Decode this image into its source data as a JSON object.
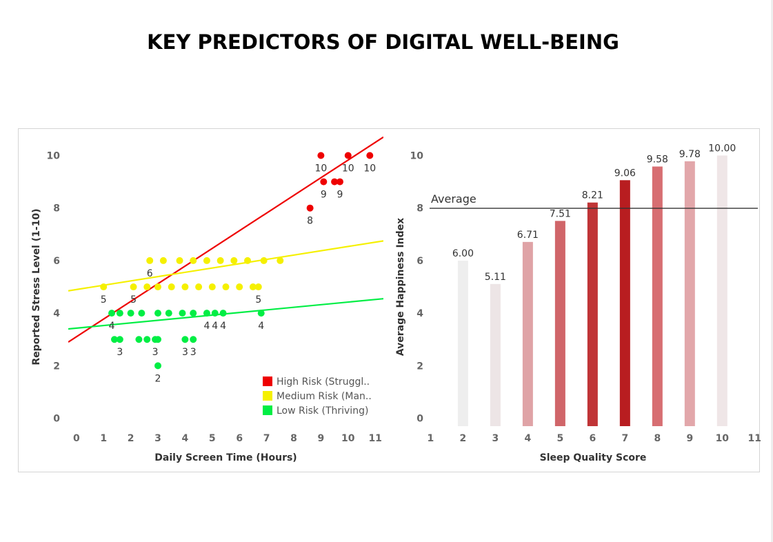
{
  "title": "KEY PREDICTORS OF DIGITAL WELL-BEING",
  "chart_data": [
    {
      "type": "scatter",
      "xlabel": "Daily Screen Time (Hours)",
      "ylabel": "Reported Stress Level (1-10)",
      "xlim": [
        -0.3,
        11.3
      ],
      "ylim": [
        -0.3,
        10.8
      ],
      "x_ticks": [
        "0",
        "1",
        "2",
        "3",
        "4",
        "5",
        "6",
        "7",
        "8",
        "9",
        "10",
        "11"
      ],
      "y_ticks": [
        "0",
        "2",
        "4",
        "6",
        "8",
        "10"
      ],
      "grid": false,
      "legend_position": "bottom-right",
      "series": [
        {
          "name": "High Risk (Struggl..",
          "color": "#ee0000",
          "points": [
            [
              9.0,
              10
            ],
            [
              10.0,
              10
            ],
            [
              10.8,
              10
            ],
            [
              9.1,
              9
            ],
            [
              9.5,
              9
            ],
            [
              9.7,
              9
            ],
            [
              8.6,
              8
            ]
          ],
          "trend": [
            [
              -0.3,
              2.9
            ],
            [
              11.3,
              10.7
            ]
          ]
        },
        {
          "name": "Medium Risk (Man..",
          "color": "#f5f000",
          "points": [
            [
              1.0,
              5
            ],
            [
              2.1,
              5
            ],
            [
              6.7,
              5
            ],
            [
              2.6,
              5
            ],
            [
              3.0,
              5
            ],
            [
              3.5,
              5
            ],
            [
              4.0,
              5
            ],
            [
              4.5,
              5
            ],
            [
              5.0,
              5
            ],
            [
              5.5,
              5
            ],
            [
              6.0,
              5
            ],
            [
              6.5,
              5
            ],
            [
              2.7,
              6
            ],
            [
              3.2,
              6
            ],
            [
              3.8,
              6
            ],
            [
              4.3,
              6
            ],
            [
              4.8,
              6
            ],
            [
              5.3,
              6
            ],
            [
              5.8,
              6
            ],
            [
              6.3,
              6
            ],
            [
              6.9,
              6
            ],
            [
              7.5,
              6
            ]
          ],
          "trend": [
            [
              -0.3,
              4.85
            ],
            [
              11.3,
              6.75
            ]
          ]
        },
        {
          "name": "Low Risk (Thriving)",
          "color": "#00ee44",
          "points": [
            [
              1.3,
              4
            ],
            [
              1.6,
              4
            ],
            [
              2.0,
              4
            ],
            [
              2.4,
              4
            ],
            [
              3.0,
              4
            ],
            [
              3.4,
              4
            ],
            [
              3.9,
              4
            ],
            [
              4.3,
              4
            ],
            [
              4.8,
              4
            ],
            [
              5.1,
              4
            ],
            [
              5.4,
              4
            ],
            [
              6.8,
              4
            ],
            [
              1.4,
              3
            ],
            [
              1.6,
              3
            ],
            [
              2.3,
              3
            ],
            [
              2.6,
              3
            ],
            [
              2.9,
              3
            ],
            [
              3.0,
              3
            ],
            [
              4.0,
              3
            ],
            [
              4.3,
              3
            ],
            [
              3.0,
              2
            ]
          ],
          "trend": [
            [
              -0.3,
              3.4
            ],
            [
              11.3,
              4.55
            ]
          ]
        }
      ],
      "point_labels": [
        {
          "x": 9.0,
          "y": 10,
          "text": "10"
        },
        {
          "x": 10.0,
          "y": 10,
          "text": "10"
        },
        {
          "x": 10.8,
          "y": 10,
          "text": "10"
        },
        {
          "x": 9.1,
          "y": 9,
          "text": "9"
        },
        {
          "x": 9.7,
          "y": 9,
          "text": "9"
        },
        {
          "x": 8.6,
          "y": 8,
          "text": "8"
        },
        {
          "x": 2.7,
          "y": 6,
          "text": "6"
        },
        {
          "x": 1.0,
          "y": 5,
          "text": "5"
        },
        {
          "x": 2.1,
          "y": 5,
          "text": "5"
        },
        {
          "x": 6.7,
          "y": 5,
          "text": "5"
        },
        {
          "x": 1.3,
          "y": 4,
          "text": "4"
        },
        {
          "x": 4.8,
          "y": 4,
          "text": "4"
        },
        {
          "x": 5.1,
          "y": 4,
          "text": "4"
        },
        {
          "x": 5.4,
          "y": 4,
          "text": "4"
        },
        {
          "x": 6.8,
          "y": 4,
          "text": "4"
        },
        {
          "x": 1.6,
          "y": 3,
          "text": "3"
        },
        {
          "x": 2.9,
          "y": 3,
          "text": "3"
        },
        {
          "x": 4.0,
          "y": 3,
          "text": "3"
        },
        {
          "x": 4.3,
          "y": 3,
          "text": "3"
        },
        {
          "x": 3.0,
          "y": 2,
          "text": "2"
        }
      ]
    },
    {
      "type": "bar",
      "xlabel": "Sleep Quality Score",
      "ylabel": "Average Happiness Index",
      "x_ticks": [
        "1",
        "2",
        "3",
        "4",
        "5",
        "6",
        "7",
        "8",
        "9",
        "10",
        "11"
      ],
      "y_ticks": [
        "0",
        "2",
        "4",
        "6",
        "8",
        "10"
      ],
      "xlim": [
        0.97,
        11.1
      ],
      "ylim": [
        -0.3,
        10.8
      ],
      "categories": [
        2,
        3,
        4,
        5,
        6,
        7,
        8,
        9,
        10
      ],
      "values": [
        6.0,
        5.11,
        6.71,
        7.51,
        8.21,
        9.06,
        9.58,
        9.78,
        10.0
      ],
      "labels": [
        "6.00",
        "5.11",
        "6.71",
        "7.51",
        "8.21",
        "9.06",
        "9.58",
        "9.78",
        "10.00"
      ],
      "colors": [
        "#eeeeee",
        "#ede5e6",
        "#dfa3a6",
        "#d06569",
        "#c03436",
        "#b81d20",
        "#d76e72",
        "#e2a7aa",
        "#efe6e7"
      ],
      "reference_line": {
        "label": "Average",
        "value": 7.99
      },
      "grid": false
    }
  ]
}
